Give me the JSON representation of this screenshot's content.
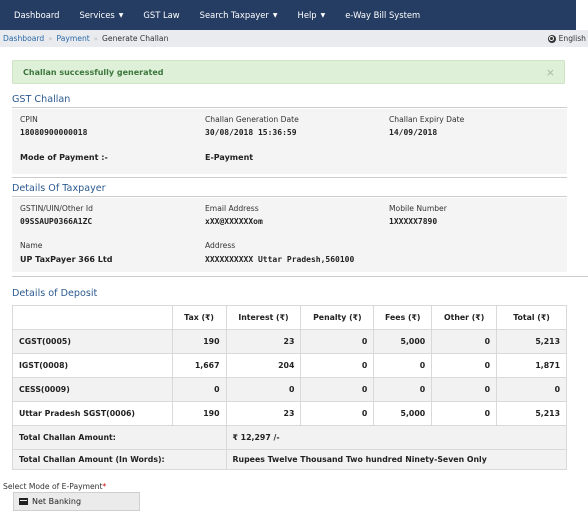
{
  "nav": {
    "items": [
      {
        "label": "Dashboard",
        "caret": false
      },
      {
        "label": "Services",
        "caret": true
      },
      {
        "label": "GST Law",
        "caret": false
      },
      {
        "label": "Search Taxpayer",
        "caret": true
      },
      {
        "label": "Help",
        "caret": true
      },
      {
        "label": "e-Way Bill System",
        "caret": false
      }
    ]
  },
  "breadcrumb": {
    "home": "Dashboard",
    "payment": "Payment",
    "current": "Generate Challan",
    "language": "English"
  },
  "alert": {
    "message": "Challan successfully generated",
    "close": "×"
  },
  "challan": {
    "title": "GST Challan",
    "cpin_label": "CPIN",
    "cpin_value": "18080900000018",
    "gen_date_label": "Challan Generation Date",
    "gen_date_value": "30/08/2018 15:36:59",
    "expiry_label": "Challan Expiry Date",
    "expiry_value": "14/09/2018",
    "mode_label": "Mode of Payment :-",
    "mode_value": "E-Payment"
  },
  "taxpayer": {
    "title": "Details Of Taxpayer",
    "gstin_label": "GSTIN/UIN/Other Id",
    "gstin_value": "09SSAUP0366A1ZC",
    "email_label": "Email Address",
    "email_value": "xXX@XXXXXXom",
    "mobile_label": "Mobile Number",
    "mobile_value": "1XXXXX7890",
    "name_label": "Name",
    "name_value": "UP TaxPayer 366 Ltd",
    "address_label": "Address",
    "address_value": "XXXXXXXXXX Uttar Pradesh,560100"
  },
  "deposit": {
    "title": "Details of Deposit",
    "headers": [
      "",
      "Tax (₹)",
      "Interest (₹)",
      "Penalty (₹)",
      "Fees (₹)",
      "Other (₹)",
      "Total (₹)"
    ],
    "rows": [
      [
        "CGST(0005)",
        "190",
        "23",
        "0",
        "5,000",
        "0",
        "5,213"
      ],
      [
        "IGST(0008)",
        "1,667",
        "204",
        "0",
        "0",
        "0",
        "1,871"
      ],
      [
        "CESS(0009)",
        "0",
        "0",
        "0",
        "0",
        "0",
        "0"
      ],
      [
        "Uttar Pradesh SGST(0006)",
        "190",
        "23",
        "0",
        "5,000",
        "0",
        "5,213"
      ]
    ],
    "total_label": "Total Challan Amount:",
    "total_value": "₹ 12,297 /-",
    "words_label": "Total Challan Amount (In Words):",
    "words_value": "Rupees Twelve Thousand Two hundred Ninety-Seven Only"
  },
  "epayment": {
    "label": "Select Mode of E-Payment",
    "required": "*",
    "option": "Net Banking"
  }
}
